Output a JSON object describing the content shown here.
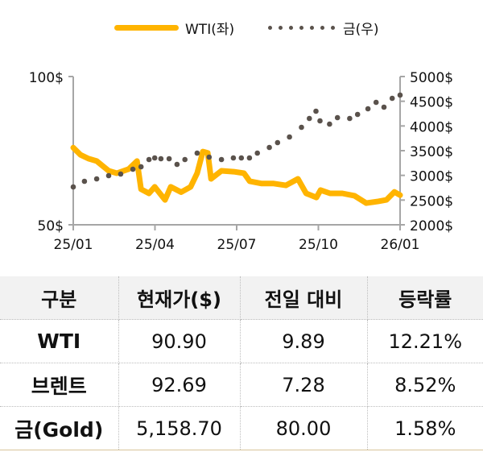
{
  "legend": {
    "wti_label": "WTI(좌)",
    "gold_label": "금(우)",
    "wti_color": "#FFB400",
    "gold_color": "#5a524c"
  },
  "axes": {
    "left_ticks": [
      "100$",
      "50$"
    ],
    "right_ticks": [
      "5000$",
      "4500$",
      "4000$",
      "3500$",
      "3000$",
      "2500$",
      "2000$"
    ],
    "x_ticks": [
      "25/01",
      "25/04",
      "25/07",
      "25/10",
      "26/01"
    ]
  },
  "chart_data": {
    "type": "line",
    "title": "",
    "xlabel": "",
    "ylabel": "",
    "x_tick_labels": [
      "25/01",
      "25/04",
      "25/07",
      "25/10",
      "26/01"
    ],
    "y_left": {
      "label": "WTI(좌)",
      "range": [
        50,
        100
      ],
      "ticks": [
        "100$",
        "50$"
      ]
    },
    "y_right": {
      "label": "금(우)",
      "range": [
        2000,
        5000
      ],
      "ticks": [
        "5000$",
        "4500$",
        "4000$",
        "3500$",
        "3000$",
        "2500$",
        "2000$"
      ]
    },
    "grid": false,
    "legend_position": "top",
    "series": [
      {
        "name": "WTI(좌)",
        "axis": "left",
        "style": "solid-thick",
        "color": "#FFB400",
        "x_months": [
          0.0,
          0.27,
          0.56,
          0.86,
          1.3,
          1.6,
          2.04,
          2.34,
          2.49,
          2.78,
          2.99,
          3.37,
          3.58,
          3.96,
          4.31,
          4.55,
          4.76,
          4.94,
          5.06,
          5.44,
          5.89,
          6.27,
          6.48,
          6.92,
          7.36,
          7.81,
          8.25,
          8.55,
          8.93,
          9.08,
          9.43,
          9.88,
          10.32,
          10.76,
          11.2,
          11.5,
          11.79,
          12.0
        ],
        "values": [
          76.0,
          73.6,
          72.3,
          71.5,
          68.2,
          67.4,
          68.8,
          71.5,
          62.0,
          60.6,
          62.8,
          58.4,
          62.8,
          61.0,
          62.8,
          67.4,
          74.7,
          74.2,
          65.5,
          68.2,
          67.9,
          67.4,
          64.7,
          63.9,
          63.9,
          63.3,
          65.5,
          60.6,
          59.2,
          61.7,
          60.6,
          60.6,
          59.8,
          57.3,
          57.9,
          58.4,
          61.1,
          60.0
        ]
      },
      {
        "name": "금(우)",
        "axis": "right",
        "style": "dotted",
        "color": "#5a524c",
        "x_months": [
          0.0,
          0.41,
          0.86,
          1.3,
          1.74,
          2.19,
          2.49,
          2.78,
          2.99,
          3.22,
          3.52,
          3.81,
          4.1,
          4.55,
          4.99,
          5.44,
          5.88,
          6.17,
          6.47,
          6.76,
          7.2,
          7.5,
          7.94,
          8.38,
          8.67,
          8.91,
          9.06,
          9.41,
          9.7,
          10.15,
          10.44,
          10.82,
          11.12,
          11.41,
          11.71,
          12.0
        ],
        "values": [
          2767,
          2880,
          2930,
          2995,
          3027,
          3125,
          3174,
          3321,
          3353,
          3337,
          3337,
          3223,
          3321,
          3451,
          3370,
          3321,
          3353,
          3353,
          3353,
          3451,
          3565,
          3663,
          3777,
          3973,
          4152,
          4299,
          4103,
          4038,
          4168,
          4152,
          4234,
          4348,
          4478,
          4380,
          4559,
          4625
        ]
      }
    ]
  },
  "table": {
    "headers": [
      "구분",
      "현재가($)",
      "전일 대비",
      "등락률"
    ],
    "rows": [
      {
        "name": "WTI",
        "price": "90.90",
        "change": "9.89",
        "rate": "12.21%"
      },
      {
        "name": "브렌트",
        "price": "92.69",
        "change": "7.28",
        "rate": "8.52%"
      },
      {
        "name": "금(Gold)",
        "price": "5,158.70",
        "change": "80.00",
        "rate": "1.58%"
      }
    ],
    "header_bg": "#f2f2f2"
  }
}
